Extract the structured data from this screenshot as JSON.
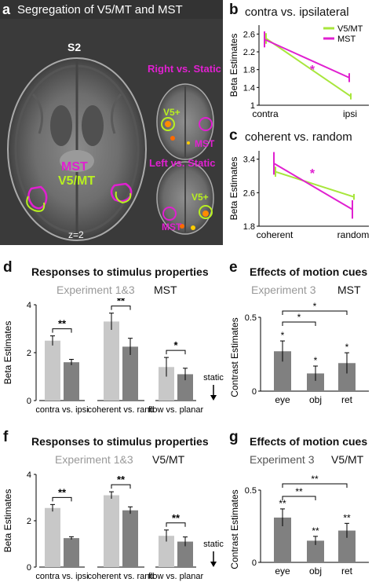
{
  "panel_a": {
    "letter": "a",
    "title": "Segregation of V5/MT and MST",
    "subject": "S2",
    "slice": "z=2",
    "label_mst": "MST",
    "label_v5": "V5/MT",
    "inset_top_title": "Right vs. Static",
    "inset_bottom_title": "Left vs. Static",
    "inset_v5": "V5+",
    "inset_mst": "MST",
    "colors": {
      "mst": "#e020d0",
      "v5": "#b8f020",
      "bg": "#3c3c3c"
    }
  },
  "panel_b": {
    "letter": "b",
    "title": "contra vs. ipsilateral",
    "ylabel": "Beta Estimates",
    "categories": [
      "contra",
      "ipsi"
    ],
    "yticks": [
      "2.6",
      "2.2",
      "1.8",
      "1.4",
      "1"
    ],
    "star": "*",
    "legend": [
      "V5/MT",
      "MST"
    ]
  },
  "panel_c": {
    "letter": "c",
    "title": "coherent vs. random",
    "ylabel": "Beta Estimates",
    "categories": [
      "coherent",
      "random"
    ],
    "yticks": [
      "3.4",
      "2.6",
      "1.8"
    ],
    "star": "*"
  },
  "panel_d": {
    "letter": "d",
    "title": "Responses to stimulus properties",
    "subtitle_exp": "Experiment 1&3",
    "subtitle_roi": "MST",
    "ylabel": "Beta Estimates",
    "yticks": [
      "4",
      "2",
      "0"
    ],
    "groups": [
      "contra vs. ipsi",
      "coherent vs. rand",
      "flow vs. planar"
    ],
    "stars": [
      "**",
      "**",
      "*"
    ],
    "static_label": "static"
  },
  "panel_e": {
    "letter": "e",
    "title": "Effects of motion cues",
    "subtitle_exp": "Experiment 3",
    "subtitle_roi": "MST",
    "ylabel": "Contrast Estimates",
    "yticks": [
      "0.5",
      "0"
    ],
    "categories": [
      "eye",
      "obj",
      "ret"
    ],
    "bar_stars": [
      "*",
      "*",
      "*"
    ],
    "bracket_stars": [
      "*",
      "*"
    ]
  },
  "panel_f": {
    "letter": "f",
    "title": "Responses to stimulus properties",
    "subtitle_exp": "Experiment 1&3",
    "subtitle_roi": "V5/MT",
    "ylabel": "Beta Estimates",
    "yticks": [
      "4",
      "2",
      "0"
    ],
    "groups": [
      "contra vs. ipsi",
      "coherent vs. rand",
      "flow vs. planar"
    ],
    "stars": [
      "**",
      "**",
      "**"
    ],
    "static_label": "static"
  },
  "panel_g": {
    "letter": "g",
    "title": "Effects of motion cues",
    "subtitle_exp": "Experiment 3",
    "subtitle_roi": "V5/MT",
    "ylabel": "Contrast Estimates",
    "yticks": [
      "0.5",
      "0"
    ],
    "categories": [
      "eye",
      "obj",
      "ret"
    ],
    "bar_stars": [
      "**",
      "**",
      "**"
    ],
    "bracket_stars": [
      "**",
      "**"
    ]
  },
  "chart_data": [
    {
      "id": "b",
      "type": "line",
      "xlabel": "",
      "ylabel": "Beta Estimates",
      "categories": [
        "contra",
        "ipsi"
      ],
      "ylim": [
        1,
        2.8
      ],
      "series": [
        {
          "name": "V5/MT",
          "color": "#a8e63c",
          "values": [
            2.5,
            1.2
          ],
          "err": [
            0.12,
            0.07
          ]
        },
        {
          "name": "MST",
          "color": "#e020d0",
          "values": [
            2.48,
            1.62
          ],
          "err": [
            0.18,
            0.1
          ]
        }
      ]
    },
    {
      "id": "c",
      "type": "line",
      "xlabel": "",
      "ylabel": "Beta Estimates",
      "categories": [
        "coherent",
        "random"
      ],
      "ylim": [
        1.8,
        3.6
      ],
      "series": [
        {
          "name": "V5/MT",
          "color": "#a8e63c",
          "values": [
            3.1,
            2.5
          ],
          "err": [
            0.12,
            0.07
          ]
        },
        {
          "name": "MST",
          "color": "#e020d0",
          "values": [
            3.3,
            2.2
          ],
          "err": [
            0.27,
            0.22
          ]
        }
      ]
    },
    {
      "id": "d",
      "type": "bar",
      "ylabel": "Beta Estimates",
      "ylim": [
        0,
        4
      ],
      "categories": [
        "contra vs. ipsi",
        "coherent vs. rand",
        "flow vs. planar"
      ],
      "series": [
        {
          "name": "",
          "color": "#c8c8c8",
          "values": [
            2.5,
            3.3,
            1.4
          ],
          "err": [
            0.2,
            0.35,
            0.4
          ]
        },
        {
          "name": "",
          "color": "#808080",
          "values": [
            1.6,
            2.25,
            1.1
          ],
          "err": [
            0.12,
            0.35,
            0.25
          ]
        }
      ]
    },
    {
      "id": "e",
      "type": "bar",
      "ylabel": "Contrast Estimates",
      "ylim": [
        0,
        0.5
      ],
      "categories": [
        "eye",
        "obj",
        "ret"
      ],
      "values": [
        0.27,
        0.12,
        0.19
      ],
      "err": [
        0.07,
        0.05,
        0.07
      ]
    },
    {
      "id": "f",
      "type": "bar",
      "ylabel": "Beta Estimates",
      "ylim": [
        0,
        4
      ],
      "categories": [
        "contra vs. ipsi",
        "coherent vs. rand",
        "flow vs. planar"
      ],
      "series": [
        {
          "name": "",
          "color": "#c8c8c8",
          "values": [
            2.55,
            3.1,
            1.35
          ],
          "err": [
            0.15,
            0.15,
            0.25
          ]
        },
        {
          "name": "",
          "color": "#808080",
          "values": [
            1.25,
            2.45,
            1.1
          ],
          "err": [
            0.06,
            0.15,
            0.2
          ]
        }
      ]
    },
    {
      "id": "g",
      "type": "bar",
      "ylabel": "Contrast Estimates",
      "ylim": [
        0,
        0.5
      ],
      "categories": [
        "eye",
        "obj",
        "ret"
      ],
      "values": [
        0.31,
        0.15,
        0.22
      ],
      "err": [
        0.06,
        0.03,
        0.05
      ]
    }
  ]
}
